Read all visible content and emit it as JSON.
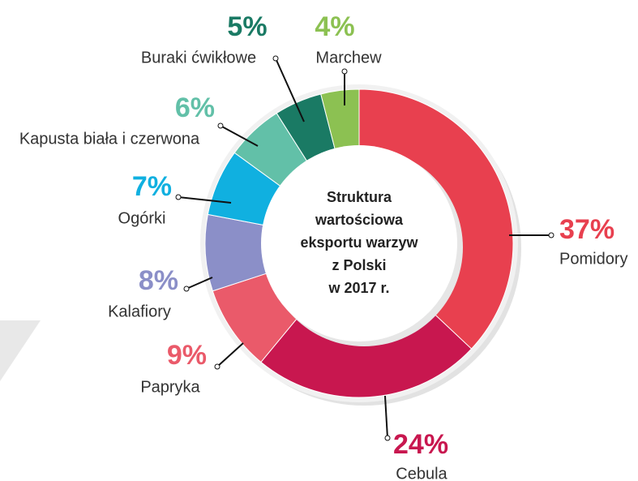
{
  "chart_data": {
    "type": "donut",
    "title": [
      "Struktura",
      "wartościowa",
      "eksportu warzyw",
      "z Polski",
      "w 2017 r."
    ],
    "categories": [
      "Pomidory",
      "Cebula",
      "Papryka",
      "Kalafiory",
      "Ogórki",
      "Kapusta biała i czerwona",
      "Buraki ćwikłowe",
      "Marchew"
    ],
    "values": [
      37,
      24,
      9,
      8,
      7,
      6,
      5,
      4
    ],
    "value_labels": [
      "37%",
      "24%",
      "9%",
      "8%",
      "7%",
      "6%",
      "5%",
      "4%"
    ],
    "colors": [
      "#e8404f",
      "#c8174f",
      "#ea5a6a",
      "#8b8fc8",
      "#10b0e0",
      "#62c0a8",
      "#1a7a64",
      "#8cc152"
    ]
  }
}
